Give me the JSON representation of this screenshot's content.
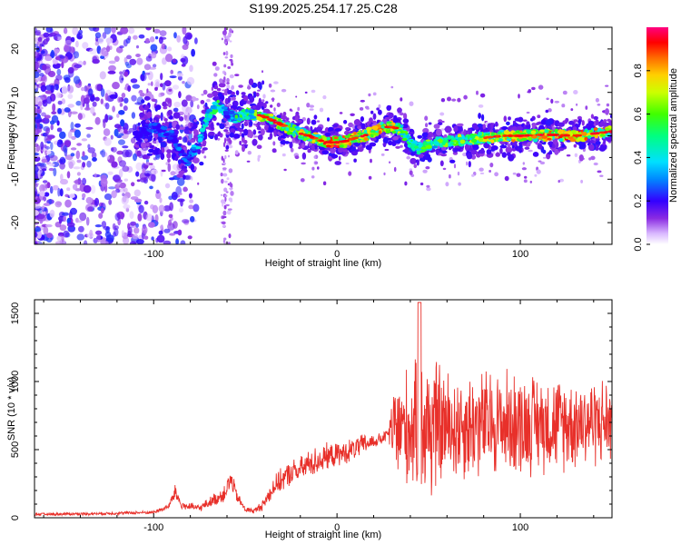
{
  "title": "S199.2025.254.17.25.C28",
  "chart_data": [
    {
      "type": "heatmap",
      "xlabel": "Height of straight line (km)",
      "ylabel": "Frequency (Hz)",
      "xlim": [
        -165,
        150
      ],
      "ylim": [
        -25,
        25
      ],
      "xticks": [
        -100,
        0,
        100
      ],
      "yticks": [
        -20,
        -10,
        0,
        10,
        20
      ],
      "colorbar": {
        "label": "Normalized spectral amplitude",
        "range": [
          0,
          1
        ],
        "ticks": [
          0.0,
          0.2,
          0.4,
          0.6,
          0.8
        ]
      },
      "ridge": {
        "x": [
          -110,
          -100,
          -90,
          -82,
          -76,
          -70,
          -65,
          -60,
          -55,
          -50,
          -45,
          -40,
          -35,
          -30,
          -25,
          -20,
          -15,
          -10,
          -5,
          0,
          5,
          10,
          15,
          20,
          25,
          30,
          35,
          40,
          45,
          50,
          55,
          60,
          65,
          70,
          80,
          90,
          100,
          110,
          120,
          130,
          140,
          150
        ],
        "y": [
          0,
          2,
          0,
          -6,
          -2,
          5,
          7,
          5,
          4,
          5,
          5,
          4.5,
          3.5,
          2.5,
          1.5,
          0.5,
          0,
          -1,
          -1.5,
          -1.5,
          -1.2,
          -0.5,
          0,
          1,
          2,
          2,
          1.5,
          -2,
          -3,
          -2,
          -1.5,
          -1.5,
          -1,
          -1,
          -0.5,
          0,
          0,
          0.2,
          0.2,
          0,
          0.5,
          1
        ],
        "amplitude": [
          0.2,
          0.3,
          0.3,
          0.3,
          0.4,
          0.5,
          0.6,
          0.3,
          0.55,
          0.6,
          0.7,
          0.85,
          0.75,
          0.8,
          0.7,
          0.75,
          0.85,
          0.8,
          0.9,
          0.95,
          0.95,
          0.9,
          0.9,
          0.85,
          0.85,
          0.8,
          0.7,
          0.5,
          0.6,
          0.65,
          0.65,
          0.7,
          0.7,
          0.7,
          0.75,
          0.8,
          0.85,
          0.85,
          0.9,
          0.9,
          0.85,
          0.8
        ]
      }
    },
    {
      "type": "line",
      "xlabel": "Height of straight line (km)",
      "ylabel": "SNR (10 * v/v)",
      "xlim": [
        -165,
        150
      ],
      "ylim": [
        0,
        1600
      ],
      "xticks": [
        -100,
        0,
        100
      ],
      "yticks": [
        0,
        500,
        1000,
        1500
      ],
      "series": [
        {
          "name": "SNR",
          "color": "#e8302a",
          "envelope_x": [
            -165,
            -130,
            -100,
            -92,
            -88,
            -85,
            -75,
            -70,
            -62,
            -58,
            -54,
            -50,
            -45,
            -40,
            -35,
            -30,
            -25,
            -20,
            -15,
            -10,
            -5,
            0,
            5,
            10,
            15,
            20,
            25,
            28,
            30,
            32,
            35,
            40,
            45,
            48,
            50,
            55,
            60,
            70,
            80,
            90,
            100,
            110,
            120,
            130,
            140,
            150
          ],
          "envelope_mean": [
            25,
            30,
            40,
            80,
            190,
            90,
            70,
            110,
            170,
            280,
            140,
            60,
            50,
            100,
            220,
            280,
            330,
            350,
            400,
            420,
            450,
            460,
            480,
            510,
            540,
            560,
            580,
            620,
            640,
            650,
            650,
            660,
            660,
            660,
            670,
            680,
            660,
            680,
            690,
            700,
            690,
            700,
            690,
            700,
            710,
            700
          ],
          "envelope_spread": [
            10,
            10,
            12,
            20,
            60,
            30,
            25,
            35,
            60,
            80,
            40,
            20,
            20,
            40,
            70,
            80,
            90,
            90,
            100,
            100,
            90,
            80,
            80,
            80,
            70,
            50,
            40,
            40,
            250,
            350,
            400,
            420,
            450,
            500,
            600,
            450,
            400,
            380,
            380,
            370,
            360,
            340,
            330,
            320,
            310,
            300
          ]
        }
      ]
    }
  ]
}
